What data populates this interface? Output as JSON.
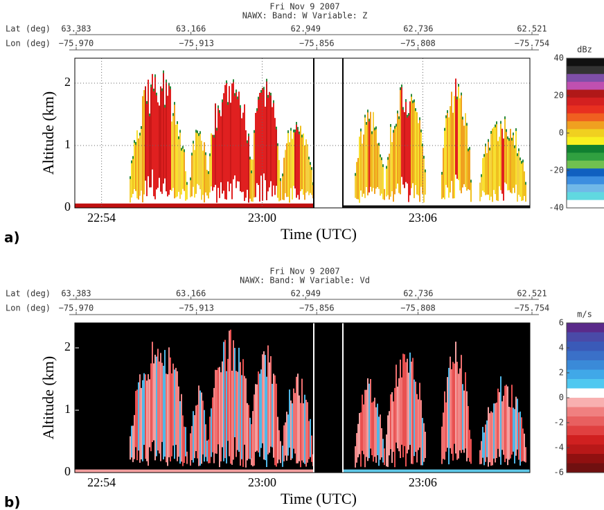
{
  "chart_data": [
    {
      "type": "heatmap",
      "label": "a)",
      "title": "Fri Nov  9 2007",
      "subtitle": "NAWX: Band: W   Variable: Z",
      "lat_label": "Lat (deg)",
      "latlim": [
        63.383,
        62.521
      ],
      "lat_ticks": [
        63.383,
        63.166,
        62.949,
        62.736,
        62.521
      ],
      "lon_label": "Lon (deg)",
      "lonlim": [
        -75.97,
        -75.754
      ],
      "lon_ticks": [
        {
          "value": -75.97,
          "label": "−75.970"
        },
        {
          "value": -75.913,
          "label": "−75.913"
        },
        {
          "value": -75.856,
          "label": "−75.856"
        },
        {
          "value": -75.808,
          "label": "−75.808"
        },
        {
          "value": -75.754,
          "label": "−75.754"
        }
      ],
      "y_label": "Altitude (km)",
      "ylim": [
        0,
        2.4
      ],
      "yticks": [
        0,
        1,
        2
      ],
      "x_label": "Time (UTC)",
      "xlim": [
        "22:53",
        "23:10"
      ],
      "xticks": [
        "22:54",
        "23:00",
        "23:06"
      ],
      "grid": true,
      "background": "#ffffff",
      "colorbar": {
        "label": "dBz",
        "lim": [
          -40,
          40
        ],
        "ticks": [
          40,
          20,
          0,
          -20,
          -40
        ],
        "colors": [
          "#111111",
          "#333333",
          "#7f4fa8",
          "#c050b0",
          "#b01818",
          "#d42020",
          "#e83020",
          "#f06020",
          "#f0a020",
          "#f0d020",
          "#f8f020",
          "#108030",
          "#30a040",
          "#70c050",
          "#1060c0",
          "#3c8ee0",
          "#70b8e8",
          "#60d8e0",
          "#ffffff"
        ]
      }
    },
    {
      "type": "heatmap",
      "label": "b)",
      "title": "Fri Nov  9 2007",
      "subtitle": "NAWX: Band: W   Variable: Vd",
      "lat_label": "Lat (deg)",
      "latlim": [
        63.383,
        62.521
      ],
      "lat_ticks": [
        63.383,
        63.166,
        62.949,
        62.736,
        62.521
      ],
      "lon_label": "Lon (deg)",
      "lonlim": [
        -75.97,
        -75.754
      ],
      "lon_ticks": [
        {
          "value": -75.97,
          "label": "−75.970"
        },
        {
          "value": -75.913,
          "label": "−75.913"
        },
        {
          "value": -75.856,
          "label": "−75.856"
        },
        {
          "value": -75.808,
          "label": "−75.808"
        },
        {
          "value": -75.754,
          "label": "−75.754"
        }
      ],
      "y_label": "Altitude (km)",
      "ylim": [
        0,
        2.4
      ],
      "yticks": [
        0,
        1,
        2
      ],
      "x_label": "Time (UTC)",
      "xlim": [
        "22:53",
        "23:10"
      ],
      "xticks": [
        "22:54",
        "23:00",
        "23:06"
      ],
      "grid": false,
      "background": "#000000",
      "colorbar": {
        "label": "m/s",
        "lim": [
          -6,
          6
        ],
        "ticks": [
          6,
          4,
          2,
          0,
          -2,
          -4,
          -6
        ],
        "colors": [
          "#5a2a8a",
          "#4a4aa8",
          "#3a5ab8",
          "#3a70c8",
          "#3a8ad8",
          "#40a8e8",
          "#50c8f0",
          "#ffffff",
          "#f8b0b0",
          "#f08080",
          "#e86060",
          "#e04040",
          "#d02020",
          "#b81818",
          "#901010",
          "#701010"
        ]
      }
    }
  ]
}
